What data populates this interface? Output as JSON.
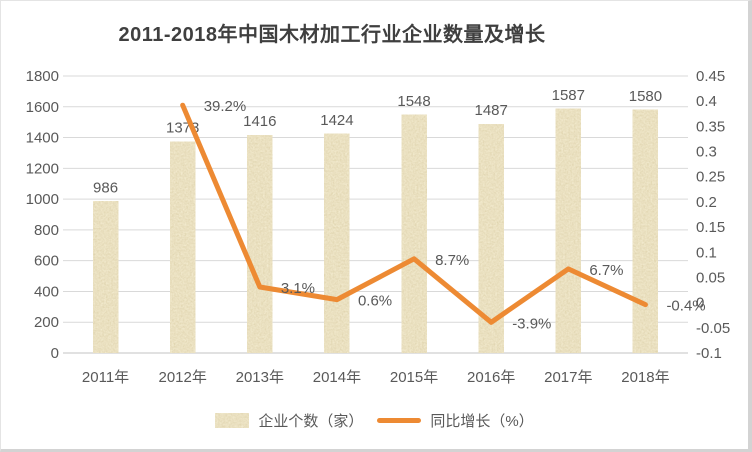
{
  "chart_data": {
    "type": "bar",
    "title": "2011-2018年中国木材加工行业企业数量及增长",
    "categories": [
      "2011年",
      "2012年",
      "2013年",
      "2014年",
      "2015年",
      "2016年",
      "2017年",
      "2018年"
    ],
    "series": [
      {
        "name": "企业个数（家）",
        "type": "bar",
        "axis": "left",
        "values": [
          986,
          1373,
          1416,
          1424,
          1548,
          1487,
          1587,
          1580
        ],
        "labels": [
          "986",
          "1373",
          "1416",
          "1424",
          "1548",
          "1487",
          "1587",
          "1580"
        ]
      },
      {
        "name": "同比增长（%）",
        "type": "line",
        "axis": "right",
        "values": [
          null,
          0.392,
          0.031,
          0.006,
          0.087,
          -0.039,
          0.067,
          -0.004
        ],
        "labels": [
          "",
          "39.2%",
          "3.1%",
          "0.6%",
          "8.7%",
          "-3.9%",
          "6.7%",
          "-0.4%"
        ]
      }
    ],
    "left_axis": {
      "min": 0,
      "max": 1800,
      "step": 200,
      "ticks": [
        "1800",
        "1600",
        "1400",
        "1200",
        "1000",
        "800",
        "600",
        "400",
        "200",
        "0"
      ]
    },
    "right_axis": {
      "min": -0.1,
      "max": 0.45,
      "step": 0.05,
      "ticks": [
        "0.45",
        "0.4",
        "0.35",
        "0.3",
        "0.25",
        "0.2",
        "0.15",
        "0.1",
        "0.05",
        "0",
        "-0.05",
        "-0.1"
      ]
    },
    "grid": true,
    "legend_position": "bottom",
    "colors": {
      "bar_fill": "#D8C48B",
      "bar_speckle_dark": "#B09754",
      "bar_speckle_light": "#F3E7BA",
      "line": "#ED8A33",
      "text": "#595959",
      "title_text": "#3F3F3F",
      "gridline": "#D9D9D9",
      "axis_line": "#C3C3C3"
    }
  }
}
